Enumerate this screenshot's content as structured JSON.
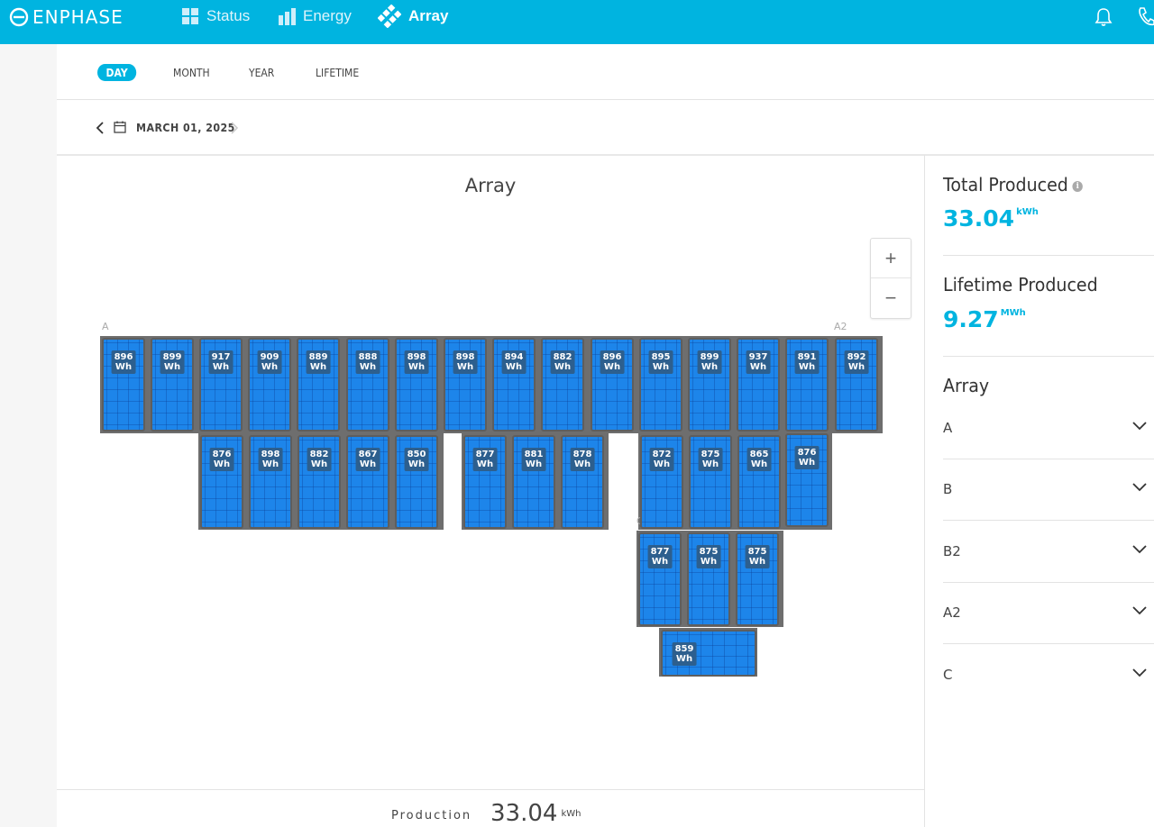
{
  "header": {
    "logo_text": "ENPHASE",
    "nav": [
      {
        "label": "Status",
        "icon": "status-grid-icon"
      },
      {
        "label": "Energy",
        "icon": "energy-bars-icon"
      },
      {
        "label": "Array",
        "icon": "array-panels-icon",
        "active": true
      }
    ],
    "accent_color": "#00b4e0"
  },
  "period_tabs": [
    "DAY",
    "MONTH",
    "YEAR",
    "LIFETIME"
  ],
  "active_period": "DAY",
  "date": {
    "label": "MARCH 01, 2025"
  },
  "array_view": {
    "title": "Array",
    "zoom_in": "+",
    "zoom_out": "−",
    "groups": {
      "A": [
        {
          "value": "896",
          "unit": "Wh"
        },
        {
          "value": "899",
          "unit": "Wh"
        },
        {
          "value": "917",
          "unit": "Wh"
        },
        {
          "value": "909",
          "unit": "Wh"
        },
        {
          "value": "889",
          "unit": "Wh"
        },
        {
          "value": "888",
          "unit": "Wh"
        },
        {
          "value": "898",
          "unit": "Wh"
        },
        {
          "value": "898",
          "unit": "Wh"
        },
        {
          "value": "894",
          "unit": "Wh"
        },
        {
          "value": "882",
          "unit": "Wh"
        },
        {
          "value": "896",
          "unit": "Wh"
        },
        {
          "value": "895",
          "unit": "Wh"
        },
        {
          "value": "899",
          "unit": "Wh"
        },
        {
          "value": "937",
          "unit": "Wh"
        },
        {
          "value": "891",
          "unit": "Wh"
        }
      ],
      "A2": [
        {
          "value": "892",
          "unit": "Wh"
        }
      ],
      "B": [
        {
          "value": "876",
          "unit": "Wh"
        },
        {
          "value": "898",
          "unit": "Wh"
        },
        {
          "value": "882",
          "unit": "Wh"
        },
        {
          "value": "867",
          "unit": "Wh"
        },
        {
          "value": "850",
          "unit": "Wh"
        },
        {
          "value": "877",
          "unit": "Wh"
        },
        {
          "value": "881",
          "unit": "Wh"
        },
        {
          "value": "878",
          "unit": "Wh"
        },
        {
          "value": "872",
          "unit": "Wh"
        },
        {
          "value": "875",
          "unit": "Wh"
        },
        {
          "value": "865",
          "unit": "Wh"
        }
      ],
      "B2": [
        {
          "value": "876",
          "unit": "Wh"
        }
      ],
      "C": [
        {
          "value": "877",
          "unit": "Wh"
        },
        {
          "value": "875",
          "unit": "Wh"
        },
        {
          "value": "875",
          "unit": "Wh"
        },
        {
          "value": "859",
          "unit": "Wh"
        }
      ]
    },
    "group_labels": [
      "A",
      "A2",
      "B",
      "B2",
      "C"
    ]
  },
  "sidebar": {
    "total_produced": {
      "title": "Total Produced",
      "value": "33.04",
      "unit": "kWh"
    },
    "lifetime_produced": {
      "title": "Lifetime Produced",
      "value": "9.27",
      "unit": "MWh"
    },
    "array_title": "Array",
    "array_items": [
      "A",
      "B",
      "B2",
      "A2",
      "C"
    ]
  },
  "footer": {
    "label": "Production",
    "value": "33.04",
    "unit": "kWh"
  }
}
